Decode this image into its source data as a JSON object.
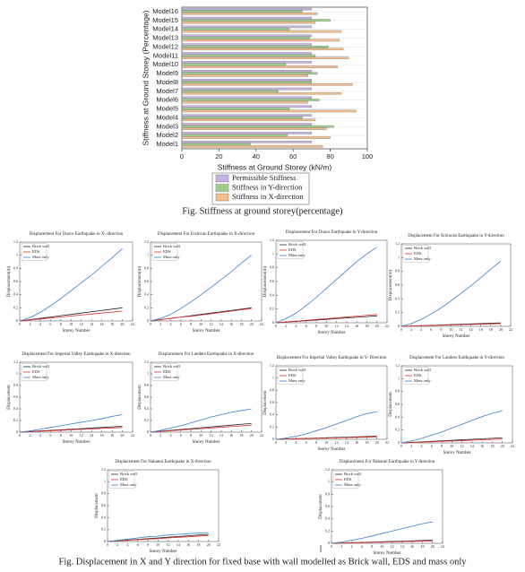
{
  "chart_data": [
    {
      "type": "bar",
      "orientation": "horizontal",
      "xlabel": "Stiffness at Ground Storey (kN/m)",
      "ylabel": "Stiffness at Ground Storey (Percentage)",
      "categories": [
        "Model1",
        "Model2",
        "Model3",
        "Model4",
        "Model5",
        "Model6",
        "Model7",
        "Model8",
        "Model9",
        "Model10",
        "Model11",
        "Model12",
        "Model13",
        "Model14",
        "Model15",
        "Model16"
      ],
      "series": [
        {
          "name": "Permissible Stiffness",
          "color": "#c5b3e0",
          "values": [
            70,
            70,
            70,
            70,
            70,
            70,
            70,
            70,
            70,
            70,
            70,
            70,
            70,
            70,
            70,
            70
          ]
        },
        {
          "name": "Stiffness in Y-direction",
          "color": "#9fd08a",
          "values": [
            37,
            57,
            82,
            65,
            58,
            74,
            52,
            70,
            73,
            56,
            72,
            79,
            69,
            58,
            80,
            65
          ]
        },
        {
          "name": "Stiffness in X-direction",
          "color": "#f6be8c",
          "values": [
            76,
            80,
            78,
            72,
            94,
            68,
            86,
            92,
            68,
            84,
            90,
            87,
            85,
            86,
            72,
            73
          ]
        }
      ],
      "xlim": [
        0,
        100
      ],
      "xticks": [
        0,
        20,
        40,
        60,
        80,
        100
      ],
      "caption": "Fig. Stiffness at ground storey(percentage)"
    },
    {
      "type": "line",
      "title": "Displacement For Duzce Earthquake in X- direction",
      "xlabel": "Storey Number",
      "ylabel": "Displacement(m)",
      "x": [
        0,
        2,
        4,
        6,
        8,
        10,
        12,
        14,
        16,
        18,
        20
      ],
      "xlim": [
        0,
        22
      ],
      "xticks": [
        0,
        2,
        4,
        6,
        8,
        10,
        12,
        14,
        16,
        18,
        20,
        22
      ],
      "ylim": [
        0,
        1.2
      ],
      "yticks": [
        0,
        0.2,
        0.4,
        0.6,
        0.8,
        1,
        1.2
      ],
      "series": [
        {
          "name": "Brick wall",
          "color": "#222222",
          "values": [
            0,
            0.02,
            0.04,
            0.06,
            0.08,
            0.1,
            0.12,
            0.14,
            0.16,
            0.18,
            0.2
          ]
        },
        {
          "name": "EDS",
          "color": "#e0302a",
          "values": [
            0,
            0.015,
            0.03,
            0.045,
            0.06,
            0.075,
            0.09,
            0.105,
            0.12,
            0.135,
            0.15
          ]
        },
        {
          "name": "Mass only",
          "color": "#3a7fd0",
          "values": [
            0,
            0.05,
            0.13,
            0.23,
            0.34,
            0.46,
            0.58,
            0.7,
            0.83,
            0.96,
            1.1
          ]
        }
      ]
    },
    {
      "type": "line",
      "title": "Displacement For Erzincan Earthquake in X-direction",
      "xlabel": "Storey Number",
      "ylabel": "Displacement(m)",
      "x": [
        0,
        2,
        4,
        6,
        8,
        10,
        12,
        14,
        16,
        18,
        20
      ],
      "xlim": [
        0,
        22
      ],
      "xticks": [
        0,
        2,
        4,
        6,
        8,
        10,
        12,
        14,
        16,
        18,
        20,
        22
      ],
      "ylim": [
        0,
        1.2
      ],
      "yticks": [
        0,
        0.2,
        0.4,
        0.6,
        0.8,
        1,
        1.2
      ],
      "series": [
        {
          "name": "Brick wall",
          "color": "#222222",
          "values": [
            0,
            0.02,
            0.04,
            0.06,
            0.08,
            0.1,
            0.12,
            0.14,
            0.16,
            0.18,
            0.2
          ]
        },
        {
          "name": "EDS",
          "color": "#e0302a",
          "values": [
            0,
            0.02,
            0.04,
            0.06,
            0.07,
            0.09,
            0.11,
            0.13,
            0.15,
            0.17,
            0.19
          ]
        },
        {
          "name": "Mass only",
          "color": "#3a7fd0",
          "values": [
            0,
            0.04,
            0.1,
            0.19,
            0.29,
            0.4,
            0.51,
            0.63,
            0.75,
            0.88,
            1.0
          ]
        }
      ]
    },
    {
      "type": "line",
      "title": "Displacement For Duzce Earthquake in Y-direction",
      "xlabel": "Storey Number",
      "ylabel": "Displacement(m)",
      "x": [
        0,
        2,
        4,
        6,
        8,
        10,
        12,
        14,
        16,
        18,
        20
      ],
      "xlim": [
        0,
        22
      ],
      "xticks": [
        0,
        2,
        4,
        6,
        8,
        10,
        12,
        14,
        16,
        18,
        20,
        22
      ],
      "ylim": [
        0,
        1.2
      ],
      "yticks": [
        0,
        0.2,
        0.4,
        0.6,
        0.8,
        1,
        1.2
      ],
      "series": [
        {
          "name": "Brick wall",
          "color": "#222222",
          "values": [
            0,
            0.01,
            0.02,
            0.03,
            0.04,
            0.05,
            0.06,
            0.07,
            0.08,
            0.09,
            0.1
          ]
        },
        {
          "name": "EDS",
          "color": "#e0302a",
          "values": [
            0,
            0.012,
            0.024,
            0.036,
            0.048,
            0.06,
            0.072,
            0.084,
            0.096,
            0.108,
            0.12
          ]
        },
        {
          "name": "Mass only",
          "color": "#3a7fd0",
          "values": [
            0,
            0.06,
            0.14,
            0.25,
            0.37,
            0.5,
            0.63,
            0.76,
            0.89,
            1.0,
            1.1
          ]
        }
      ]
    },
    {
      "type": "line",
      "title": "Displacement For Erzincan Earthquake in Y-direction",
      "xlabel": "Storey Number",
      "ylabel": "Displacement(m)",
      "x": [
        0,
        2,
        4,
        6,
        8,
        10,
        12,
        14,
        16,
        18,
        20
      ],
      "xlim": [
        0,
        22
      ],
      "xticks": [
        0,
        2,
        4,
        6,
        8,
        10,
        12,
        14,
        16,
        18,
        20,
        22
      ],
      "ylim": [
        0,
        1.2
      ],
      "yticks": [
        0,
        0.2,
        0.4,
        0.6,
        0.8,
        1,
        1.2
      ],
      "series": [
        {
          "name": "Brick wall",
          "color": "#222222",
          "values": [
            0,
            0.005,
            0.01,
            0.015,
            0.02,
            0.025,
            0.03,
            0.035,
            0.04,
            0.045,
            0.05
          ]
        },
        {
          "name": "EDS",
          "color": "#e0302a",
          "values": [
            0,
            0.004,
            0.008,
            0.012,
            0.016,
            0.02,
            0.024,
            0.028,
            0.032,
            0.036,
            0.04
          ]
        },
        {
          "name": "Mass only",
          "color": "#3a7fd0",
          "values": [
            0,
            0.04,
            0.1,
            0.18,
            0.27,
            0.37,
            0.48,
            0.59,
            0.71,
            0.83,
            0.95
          ]
        }
      ]
    },
    {
      "type": "line",
      "title": "Displacement For Imperial Valley Earthquake in X-direction",
      "xlabel": "Storey Number",
      "ylabel": "Displacement",
      "x": [
        0,
        2,
        4,
        6,
        8,
        10,
        12,
        14,
        16,
        18,
        20
      ],
      "xlim": [
        0,
        22
      ],
      "xticks": [
        0,
        2,
        4,
        6,
        8,
        10,
        12,
        14,
        16,
        18,
        20,
        22
      ],
      "ylim": [
        0,
        1.2
      ],
      "yticks": [
        0,
        0.2,
        0.4,
        0.6,
        0.8,
        1,
        1.2
      ],
      "series": [
        {
          "name": "Brick wall",
          "color": "#222222",
          "values": [
            0,
            0.01,
            0.02,
            0.03,
            0.04,
            0.05,
            0.06,
            0.07,
            0.08,
            0.09,
            0.1
          ]
        },
        {
          "name": "EDS",
          "color": "#e0302a",
          "values": [
            0,
            0.008,
            0.016,
            0.024,
            0.032,
            0.04,
            0.048,
            0.056,
            0.064,
            0.072,
            0.08
          ]
        },
        {
          "name": "Mass only",
          "color": "#3a7fd0",
          "values": [
            0,
            0.02,
            0.05,
            0.08,
            0.11,
            0.14,
            0.17,
            0.2,
            0.23,
            0.27,
            0.3
          ]
        }
      ]
    },
    {
      "type": "line",
      "title": "Displacement For Landers Earthquake in X-direction",
      "xlabel": "Storey Number",
      "ylabel": "Displacement",
      "x": [
        0,
        2,
        4,
        6,
        8,
        10,
        12,
        14,
        16,
        18,
        20
      ],
      "xlim": [
        0,
        22
      ],
      "xticks": [
        0,
        2,
        4,
        6,
        8,
        10,
        12,
        14,
        16,
        18,
        20,
        22
      ],
      "ylim": [
        0,
        1.2
      ],
      "yticks": [
        0,
        0.2,
        0.4,
        0.6,
        0.8,
        1,
        1.2
      ],
      "series": [
        {
          "name": "Brick wall",
          "color": "#222222",
          "values": [
            0,
            0.015,
            0.03,
            0.045,
            0.06,
            0.075,
            0.09,
            0.105,
            0.12,
            0.135,
            0.15
          ]
        },
        {
          "name": "EDS",
          "color": "#e0302a",
          "values": [
            0,
            0.012,
            0.024,
            0.036,
            0.048,
            0.06,
            0.072,
            0.084,
            0.096,
            0.108,
            0.12
          ]
        },
        {
          "name": "Mass only",
          "color": "#3a7fd0",
          "values": [
            0,
            0.03,
            0.07,
            0.11,
            0.16,
            0.21,
            0.26,
            0.3,
            0.34,
            0.37,
            0.4
          ]
        }
      ]
    },
    {
      "type": "line",
      "title": "Displacement For Imperial Valley Earthquake in Y- Direction",
      "xlabel": "Storey Number",
      "ylabel": "Displacement",
      "x": [
        0,
        2,
        4,
        6,
        8,
        10,
        12,
        14,
        16,
        18,
        20
      ],
      "xlim": [
        0,
        22
      ],
      "xticks": [
        0,
        2,
        4,
        6,
        8,
        10,
        12,
        14,
        16,
        18,
        20,
        22
      ],
      "ylim": [
        0,
        1.2
      ],
      "yticks": [
        0,
        0.2,
        0.4,
        0.6,
        0.8,
        1,
        1.2
      ],
      "series": [
        {
          "name": "Brick wall",
          "color": "#222222",
          "values": [
            0,
            0.005,
            0.01,
            0.015,
            0.02,
            0.025,
            0.03,
            0.035,
            0.04,
            0.045,
            0.05
          ]
        },
        {
          "name": "EDS",
          "color": "#e0302a",
          "values": [
            0,
            0.004,
            0.008,
            0.012,
            0.016,
            0.02,
            0.024,
            0.028,
            0.032,
            0.036,
            0.04
          ]
        },
        {
          "name": "Mass only",
          "color": "#3a7fd0",
          "values": [
            0,
            0.02,
            0.05,
            0.09,
            0.14,
            0.19,
            0.25,
            0.31,
            0.37,
            0.42,
            0.45
          ]
        }
      ]
    },
    {
      "type": "line",
      "title": "Displacement For Landers Earthquake in Y-direction",
      "xlabel": "Storey Number",
      "ylabel": "Displacement",
      "x": [
        0,
        2,
        4,
        6,
        8,
        10,
        12,
        14,
        16,
        18,
        20
      ],
      "xlim": [
        0,
        22
      ],
      "xticks": [
        0,
        2,
        4,
        6,
        8,
        10,
        12,
        14,
        16,
        18,
        20,
        22
      ],
      "ylim": [
        0,
        1.2
      ],
      "yticks": [
        0,
        0.2,
        0.4,
        0.6,
        0.8,
        1,
        1.2
      ],
      "series": [
        {
          "name": "Brick wall",
          "color": "#222222",
          "values": [
            0,
            0.008,
            0.016,
            0.024,
            0.032,
            0.04,
            0.048,
            0.056,
            0.064,
            0.072,
            0.08
          ]
        },
        {
          "name": "EDS",
          "color": "#e0302a",
          "values": [
            0,
            0.006,
            0.012,
            0.018,
            0.024,
            0.03,
            0.036,
            0.042,
            0.048,
            0.054,
            0.06
          ]
        },
        {
          "name": "Mass only",
          "color": "#3a7fd0",
          "values": [
            0,
            0.03,
            0.07,
            0.12,
            0.17,
            0.23,
            0.29,
            0.35,
            0.41,
            0.46,
            0.5
          ]
        }
      ]
    },
    {
      "type": "line",
      "title": "Displacement For Nahanni Earthquake in X-direction",
      "xlabel": "Storey Number",
      "ylabel": "Displacement",
      "x": [
        0,
        2,
        4,
        6,
        8,
        10,
        12,
        14,
        16,
        18,
        20
      ],
      "xlim": [
        0,
        22
      ],
      "xticks": [
        0,
        2,
        4,
        6,
        8,
        10,
        12,
        14,
        16,
        18,
        20,
        22
      ],
      "ylim": [
        0,
        1.2
      ],
      "yticks": [
        0,
        0.2,
        0.4,
        0.6,
        0.8,
        1,
        1.2
      ],
      "series": [
        {
          "name": "Brick wall",
          "color": "#222222",
          "values": [
            0,
            0.012,
            0.024,
            0.036,
            0.048,
            0.06,
            0.072,
            0.084,
            0.096,
            0.108,
            0.12
          ]
        },
        {
          "name": "EDS",
          "color": "#e0302a",
          "values": [
            0,
            0.01,
            0.02,
            0.03,
            0.04,
            0.05,
            0.06,
            0.07,
            0.08,
            0.09,
            0.1
          ]
        },
        {
          "name": "Mass only",
          "color": "#3a7fd0",
          "values": [
            0,
            0.02,
            0.04,
            0.06,
            0.08,
            0.09,
            0.11,
            0.12,
            0.13,
            0.14,
            0.15
          ]
        }
      ]
    },
    {
      "type": "line",
      "title": "Displacement For Nahanni Earthquake in Y-direction",
      "xlabel": "Storey Number",
      "ylabel": "Displacement",
      "x": [
        0,
        2,
        4,
        6,
        8,
        10,
        12,
        14,
        16,
        18,
        20
      ],
      "xlim": [
        0,
        22
      ],
      "xticks": [
        0,
        2,
        4,
        6,
        8,
        10,
        12,
        14,
        16,
        18,
        20,
        22
      ],
      "ylim": [
        0,
        1.2
      ],
      "yticks": [
        0,
        0.2,
        0.4,
        0.6,
        0.8,
        1,
        1.2
      ],
      "series": [
        {
          "name": "Brick wall",
          "color": "#222222",
          "values": [
            0,
            0.005,
            0.01,
            0.015,
            0.02,
            0.025,
            0.03,
            0.035,
            0.04,
            0.045,
            0.05
          ]
        },
        {
          "name": "EDS",
          "color": "#e0302a",
          "values": [
            0,
            0.004,
            0.008,
            0.012,
            0.016,
            0.02,
            0.024,
            0.028,
            0.032,
            0.036,
            0.04
          ]
        },
        {
          "name": "Mass only",
          "color": "#3a7fd0",
          "values": [
            0,
            0.02,
            0.05,
            0.08,
            0.12,
            0.16,
            0.2,
            0.24,
            0.28,
            0.32,
            0.35
          ]
        }
      ]
    }
  ],
  "figure_caption": "Fig. Displacement in X and Y direction for fixed base with wall modelled as Brick wall, EDS and mass only"
}
